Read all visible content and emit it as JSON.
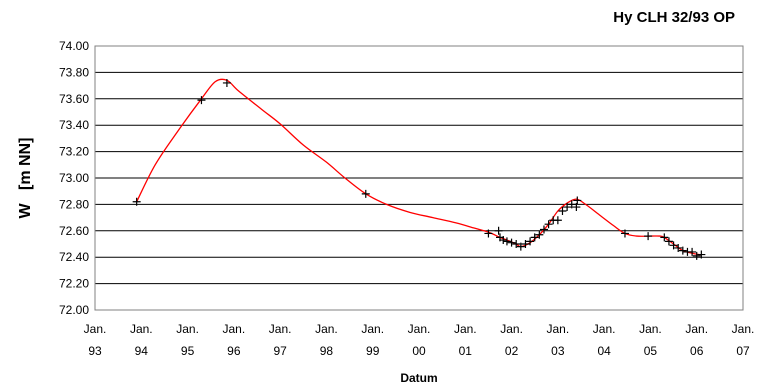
{
  "chart_data": {
    "type": "line",
    "title": "Hy CLH 32/93 OP",
    "xlabel": "Datum",
    "ylabel": "W   [m NN]",
    "xlim": [
      1993.0,
      2007.0
    ],
    "ylim": [
      72.0,
      74.0
    ],
    "grid": {
      "horizontal": true,
      "vertical": false
    },
    "y_tick_labels": [
      "72.00",
      "72.20",
      "72.40",
      "72.60",
      "72.80",
      "73.00",
      "73.20",
      "73.40",
      "73.60",
      "73.80",
      "74.00"
    ],
    "x_tick_labels": [
      [
        "Jan.",
        "93"
      ],
      [
        "Jan.",
        "94"
      ],
      [
        "Jan.",
        "95"
      ],
      [
        "Jan.",
        "96"
      ],
      [
        "Jan.",
        "97"
      ],
      [
        "Jan.",
        "98"
      ],
      [
        "Jan.",
        "99"
      ],
      [
        "Jan.",
        "00"
      ],
      [
        "Jan.",
        "01"
      ],
      [
        "Jan.",
        "02"
      ],
      [
        "Jan.",
        "03"
      ],
      [
        "Jan.",
        "04"
      ],
      [
        "Jan.",
        "05"
      ],
      [
        "Jan.",
        "06"
      ],
      [
        "Jan.",
        "07"
      ]
    ],
    "colors": {
      "line": "#ff0000",
      "marker": "#000000",
      "grid": "#000000",
      "plot_border": "#808080"
    },
    "series": [
      {
        "type": "line",
        "values": [
          [
            1993.9,
            72.82
          ],
          [
            1994.3,
            73.1
          ],
          [
            1994.8,
            73.36
          ],
          [
            1995.3,
            73.6
          ],
          [
            1995.6,
            73.73
          ],
          [
            1995.85,
            73.74
          ],
          [
            1996.1,
            73.66
          ],
          [
            1996.6,
            73.52
          ],
          [
            1997.0,
            73.41
          ],
          [
            1997.5,
            73.25
          ],
          [
            1998.0,
            73.12
          ],
          [
            1998.4,
            73.0
          ],
          [
            1998.85,
            72.88
          ],
          [
            1999.3,
            72.8
          ],
          [
            1999.8,
            72.74
          ],
          [
            2000.3,
            72.7
          ],
          [
            2000.8,
            72.66
          ],
          [
            2001.2,
            72.62
          ],
          [
            2001.5,
            72.59
          ],
          [
            2001.75,
            72.55
          ],
          [
            2001.9,
            72.53
          ],
          [
            2002.1,
            72.5
          ],
          [
            2002.2,
            72.48
          ],
          [
            2002.4,
            72.51
          ],
          [
            2002.6,
            72.57
          ],
          [
            2002.8,
            72.65
          ],
          [
            2003.0,
            72.75
          ],
          [
            2003.2,
            72.81
          ],
          [
            2003.4,
            72.84
          ],
          [
            2003.6,
            72.8
          ],
          [
            2003.9,
            72.72
          ],
          [
            2004.2,
            72.64
          ],
          [
            2004.45,
            72.58
          ],
          [
            2004.7,
            72.56
          ],
          [
            2005.0,
            72.56
          ],
          [
            2005.2,
            72.56
          ],
          [
            2005.3,
            72.55
          ],
          [
            2005.5,
            72.5
          ],
          [
            2005.7,
            72.45
          ],
          [
            2005.9,
            72.43
          ],
          [
            2006.05,
            72.42
          ],
          [
            2006.1,
            72.42
          ]
        ]
      },
      {
        "type": "scatter",
        "marker": "+",
        "values": [
          [
            1993.9,
            72.82
          ],
          [
            1995.3,
            73.59
          ],
          [
            1995.85,
            73.72
          ],
          [
            1998.85,
            72.88
          ],
          [
            2001.5,
            72.58
          ],
          [
            2001.72,
            72.6
          ],
          [
            2001.75,
            72.55
          ],
          [
            2001.82,
            72.53
          ],
          [
            2001.9,
            72.52
          ],
          [
            2002.0,
            72.51
          ],
          [
            2002.1,
            72.5
          ],
          [
            2002.2,
            72.48
          ],
          [
            2002.3,
            72.5
          ],
          [
            2002.4,
            72.52
          ],
          [
            2002.5,
            72.55
          ],
          [
            2002.6,
            72.57
          ],
          [
            2002.7,
            72.61
          ],
          [
            2002.8,
            72.65
          ],
          [
            2002.9,
            72.68
          ],
          [
            2003.0,
            72.68
          ],
          [
            2003.1,
            72.75
          ],
          [
            2003.2,
            72.78
          ],
          [
            2003.3,
            72.8
          ],
          [
            2003.4,
            72.78
          ],
          [
            2003.42,
            72.83
          ],
          [
            2004.45,
            72.58
          ],
          [
            2004.95,
            72.56
          ],
          [
            2005.3,
            72.55
          ],
          [
            2005.4,
            72.52
          ],
          [
            2005.5,
            72.49
          ],
          [
            2005.6,
            72.47
          ],
          [
            2005.7,
            72.45
          ],
          [
            2005.8,
            72.44
          ],
          [
            2005.9,
            72.44
          ],
          [
            2006.0,
            72.41
          ],
          [
            2006.1,
            72.42
          ]
        ]
      }
    ]
  }
}
